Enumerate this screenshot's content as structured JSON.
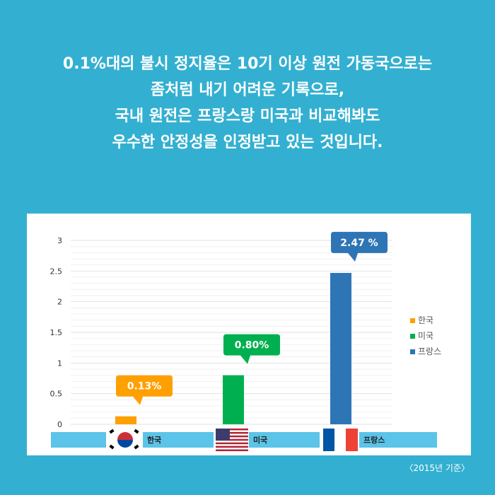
{
  "headline": {
    "lines": [
      "0.1%대의 불시 정지율은 10기 이상 원전 가동국으로는",
      "좀처럼 내기 어려운 기록으로,",
      "국내 원전은 프랑스랑 미국과 비교해봐도",
      "우수한 안정성을 인정받고 있는 것입니다."
    ]
  },
  "chart_data": {
    "type": "bar",
    "categories": [
      "한국",
      "미국",
      "프랑스"
    ],
    "values": [
      0.13,
      0.8,
      2.47
    ],
    "value_labels": [
      "0.13%",
      "0.80%",
      "2.47 %"
    ],
    "legend": [
      "한국",
      "미국",
      "프랑스"
    ],
    "legend_position": "right",
    "colors": [
      "#ffa000",
      "#00b050",
      "#2e75b6"
    ],
    "ylim": [
      0,
      3
    ],
    "yticks": [
      "0",
      "0.5",
      "1",
      "1.5",
      "2",
      "2.5",
      "3"
    ],
    "grid": true,
    "title": "",
    "xlabel": "",
    "ylabel": ""
  },
  "source_note": "〈2015년 기준〉"
}
